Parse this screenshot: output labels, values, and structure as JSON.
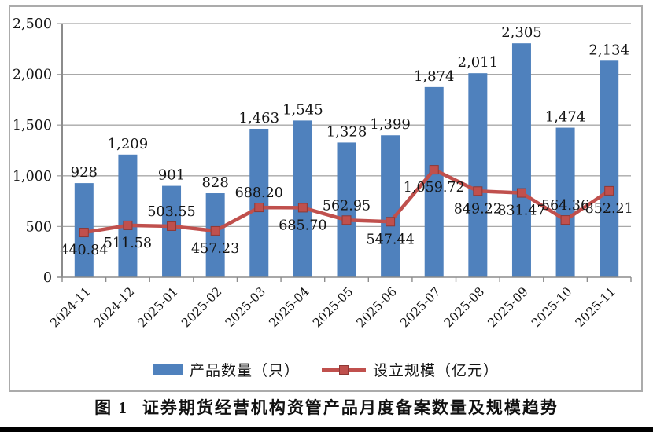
{
  "figure": {
    "caption_label": "图 1",
    "caption_title": "证券期货经营机构资管产品月度备案数量及规模趋势"
  },
  "legend": {
    "bar_label": "产品数量（只）",
    "line_label": "设立规模（亿元）"
  },
  "colors": {
    "bar": "#4F81BD",
    "line": "#C0504D",
    "line_marker_edge": "#8f3835",
    "grid": "#a8a8a8",
    "axis": "#8c8c8c",
    "frame_border": "#ababab",
    "text": "#141414"
  },
  "chart_data": {
    "type": "bar",
    "subtype": "bar+line-combo",
    "title": "图 1 证券期货经营机构资管产品月度备案数量及规模趋势",
    "xlabel": "",
    "ylabel": "",
    "ylim": [
      0,
      2500
    ],
    "y_tick_step": 500,
    "y_tick_labels": [
      "0",
      "500",
      "1,000",
      "1,500",
      "2,000",
      "2,500"
    ],
    "grid": true,
    "legend_position": "bottom",
    "categories": [
      "2024-11",
      "2024-12",
      "2025-01",
      "2025-02",
      "2025-03",
      "2025-04",
      "2025-05",
      "2025-06",
      "2025-07",
      "2025-08",
      "2025-09",
      "2025-10",
      "2025-11"
    ],
    "series": [
      {
        "name": "产品数量（只）",
        "type": "bar",
        "color": "#4F81BD",
        "values": [
          928,
          1209,
          901,
          828,
          1463,
          1545,
          1328,
          1399,
          1874,
          2011,
          2305,
          1474,
          2134
        ],
        "data_labels": [
          "928",
          "1,209",
          "901",
          "828",
          "1,463",
          "1,545",
          "1,328",
          "1,399",
          "1,874",
          "2,011",
          "2,305",
          "1,474",
          "2,134"
        ]
      },
      {
        "name": "设立规模（亿元）",
        "type": "line",
        "color": "#C0504D",
        "values": [
          440.84,
          511.58,
          503.55,
          457.23,
          688.2,
          685.7,
          562.95,
          547.44,
          1059.72,
          849.22,
          831.47,
          564.36,
          852.21
        ],
        "data_labels": [
          "440.84",
          "511.58",
          "503.55",
          "457.23",
          "688.20",
          "685.70",
          "562.95",
          "547.44",
          "1,059.72",
          "849.22",
          "831.47",
          "564.36",
          "852.21"
        ],
        "label_positions": [
          "below",
          "below",
          "above",
          "below",
          "above",
          "below",
          "above",
          "below",
          "below",
          "below",
          "below",
          "above",
          "below"
        ]
      }
    ]
  }
}
